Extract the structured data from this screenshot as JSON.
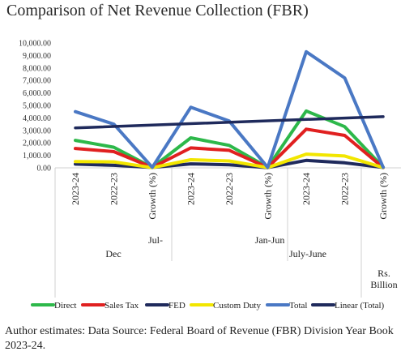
{
  "title": "Comparison of Net Revenue Collection (FBR)",
  "footer": "Author estimates: Data Source: Federal Board of Revenue (FBR) Division Year Book 2023-24.",
  "chart_data": {
    "type": "line",
    "title": "Comparison of Net Revenue Collection (FBR)",
    "x": [
      "2023-24",
      "2022-23",
      "Growth (%)",
      "2023-24",
      "2022-23",
      "Growth (%)",
      "2023-24",
      "2022-23",
      "Growth (%)"
    ],
    "groups": [
      {
        "label": "Dec",
        "upper_label": "Jul-"
      },
      {
        "label": "Jan-Jun",
        "upper_label": ""
      },
      {
        "label": "July-June",
        "upper_label": ""
      }
    ],
    "unit_label": "Rs. Billion",
    "yticks": [
      "0.00",
      "1,000.00",
      "2,000.00",
      "3,000.00",
      "4,000.00",
      "5,000.00",
      "6,000.00",
      "7,000.00",
      "8,000.00",
      "9,000.00",
      "10,000.00"
    ],
    "ylim": [
      0,
      10000
    ],
    "grid": false,
    "legend_position": "bottom",
    "series": [
      {
        "name": "Direct",
        "color": "#2db84a",
        "values": [
          2200,
          1650,
          30,
          2400,
          1800,
          30,
          4550,
          3300,
          40
        ]
      },
      {
        "name": "Sales Tax",
        "color": "#e02020",
        "values": [
          1550,
          1300,
          30,
          1600,
          1400,
          20,
          3100,
          2600,
          20
        ]
      },
      {
        "name": "FED",
        "color": "#1f2a5c",
        "values": [
          300,
          200,
          30,
          320,
          250,
          20,
          600,
          400,
          30
        ]
      },
      {
        "name": "Custom Duty",
        "color": "#f2e600",
        "values": [
          500,
          480,
          10,
          650,
          550,
          20,
          1100,
          950,
          20
        ]
      },
      {
        "name": "Total",
        "color": "#4a78c4",
        "values": [
          4500,
          3500,
          40,
          4850,
          3750,
          30,
          9300,
          7200,
          40
        ]
      }
    ],
    "trendline": {
      "name": "Linear (Total)",
      "color": "#1f2a5c",
      "values": [
        3200,
        4100
      ]
    }
  }
}
